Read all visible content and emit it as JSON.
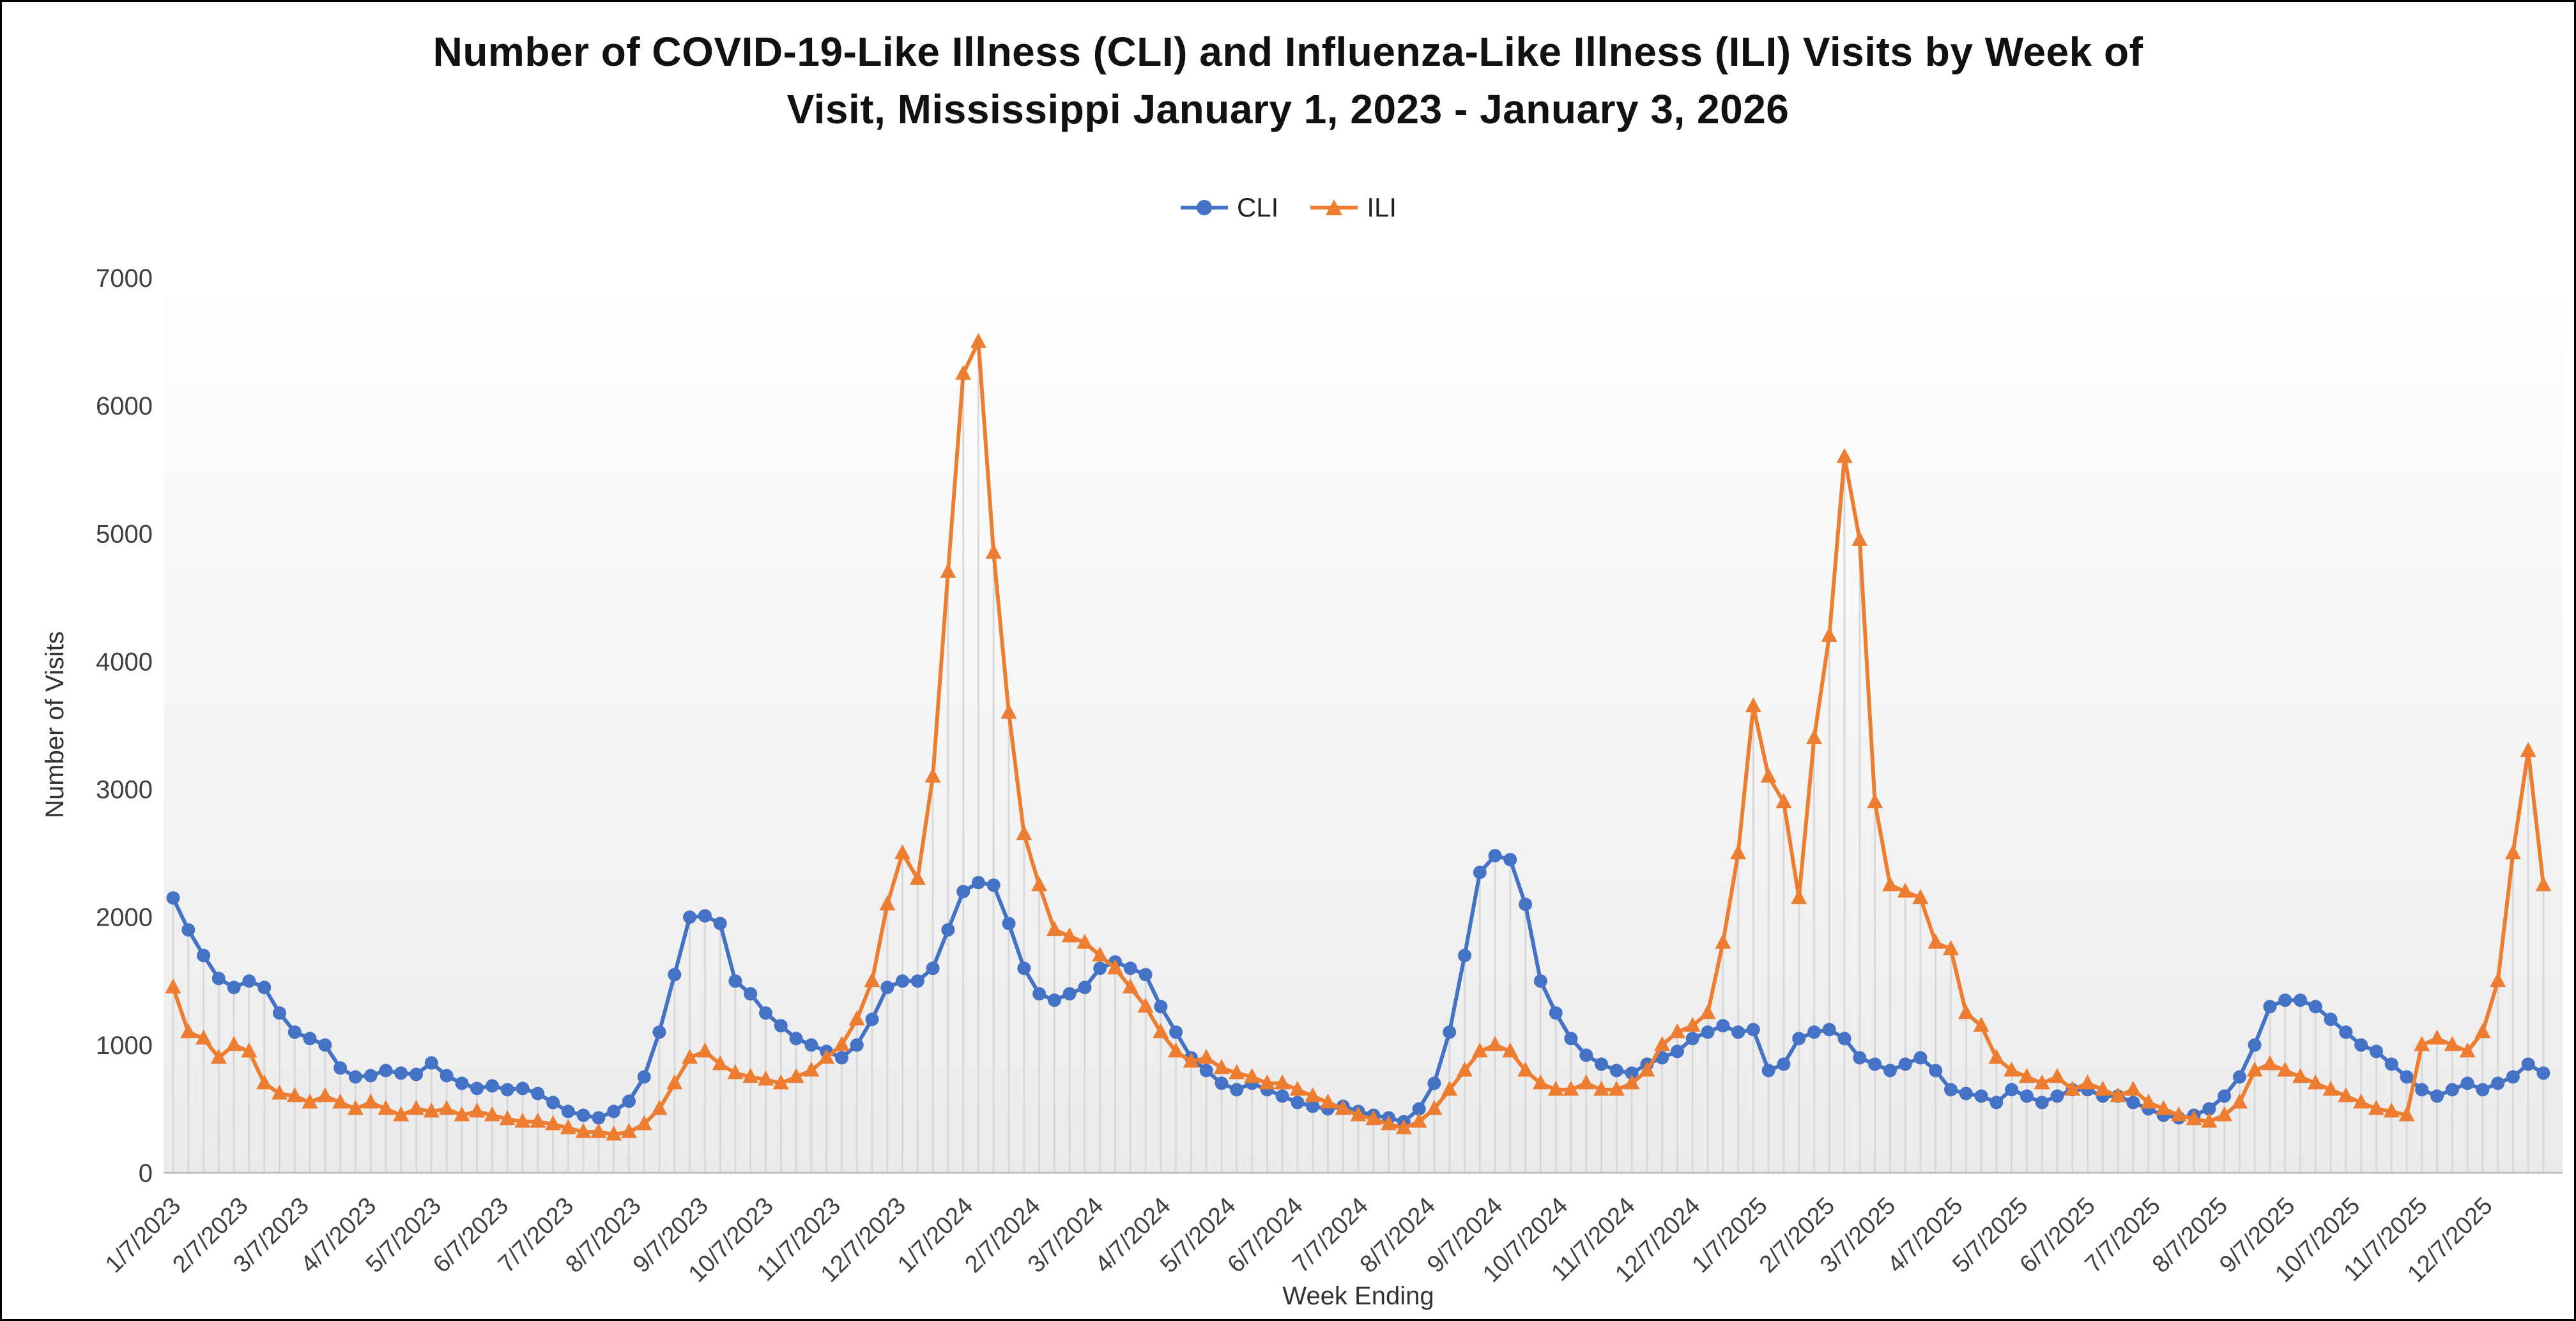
{
  "chart_data": {
    "type": "line",
    "title_lines": [
      "Number of COVID-19-Like Illness (CLI) and Influenza-Like Illness (ILI) Visits by Week of",
      "Visit, Mississippi January 1, 2023 - January 3, 2026"
    ],
    "xlabel": "Week Ending",
    "ylabel": "Number of Visits",
    "ylim": [
      0,
      7000
    ],
    "y_ticks": [
      0,
      1000,
      2000,
      3000,
      4000,
      5000,
      6000,
      7000
    ],
    "grid": "none",
    "legend_position": "top-center",
    "x_start_date": "1/7/2023",
    "x_end_date": "1/3/2026",
    "x_week_interval_days": 7,
    "x_tick_labels": [
      "1/7/2023",
      "2/7/2023",
      "3/7/2023",
      "4/7/2023",
      "5/7/2023",
      "6/7/2023",
      "7/7/2023",
      "8/7/2023",
      "9/7/2023",
      "10/7/2023",
      "11/7/2023",
      "12/7/2023",
      "1/7/2024",
      "2/7/2024",
      "3/7/2024",
      "4/7/2024",
      "5/7/2024",
      "6/7/2024",
      "7/7/2024",
      "8/7/2024",
      "9/7/2024",
      "10/7/2024",
      "11/7/2024",
      "12/7/2024",
      "1/7/2025",
      "2/7/2025",
      "3/7/2025",
      "4/7/2025",
      "5/7/2025",
      "6/7/2025",
      "7/7/2025",
      "8/7/2025",
      "9/7/2025",
      "10/7/2025",
      "11/7/2025",
      "12/7/2025"
    ],
    "series": [
      {
        "name": "CLI",
        "marker": "circle",
        "color": "#4472C4",
        "values": [
          2150,
          1900,
          1700,
          1520,
          1450,
          1500,
          1450,
          1250,
          1100,
          1050,
          1000,
          820,
          750,
          760,
          800,
          780,
          770,
          860,
          760,
          700,
          660,
          680,
          650,
          660,
          620,
          550,
          480,
          450,
          430,
          480,
          560,
          750,
          1100,
          1550,
          2000,
          2010,
          1950,
          1500,
          1400,
          1250,
          1150,
          1050,
          1000,
          950,
          900,
          1000,
          1200,
          1450,
          1500,
          1500,
          1600,
          1900,
          2200,
          2270,
          2250,
          1950,
          1600,
          1400,
          1350,
          1400,
          1450,
          1600,
          1650,
          1600,
          1550,
          1300,
          1100,
          900,
          800,
          700,
          650,
          700,
          650,
          600,
          550,
          520,
          500,
          520,
          480,
          450,
          430,
          400,
          500,
          700,
          1100,
          1700,
          2350,
          2480,
          2450,
          2100,
          1500,
          1250,
          1050,
          920,
          850,
          800,
          780,
          850,
          900,
          950,
          1050,
          1100,
          1150,
          1100,
          1120,
          800,
          850,
          1050,
          1100,
          1120,
          1050,
          900,
          850,
          800,
          850,
          900,
          800,
          650,
          620,
          600,
          550,
          650,
          600,
          550,
          600,
          650,
          650,
          600,
          600,
          550,
          500,
          450,
          430,
          450,
          500,
          600,
          750,
          1000,
          1300,
          1350,
          1350,
          1300,
          1200,
          1100,
          1000,
          950,
          850,
          750,
          650,
          600,
          650,
          700,
          650,
          700,
          750,
          850,
          780
        ]
      },
      {
        "name": "ILI",
        "marker": "triangle",
        "color": "#ED7D31",
        "values": [
          1450,
          1100,
          1050,
          900,
          1000,
          950,
          700,
          620,
          600,
          550,
          600,
          550,
          500,
          550,
          500,
          450,
          500,
          480,
          500,
          450,
          480,
          450,
          420,
          400,
          400,
          380,
          350,
          320,
          320,
          300,
          320,
          380,
          500,
          700,
          900,
          950,
          850,
          780,
          750,
          730,
          700,
          750,
          800,
          900,
          1000,
          1200,
          1500,
          2100,
          2500,
          2300,
          3100,
          4700,
          6250,
          6500,
          4850,
          3600,
          2650,
          2250,
          1900,
          1850,
          1800,
          1700,
          1600,
          1450,
          1300,
          1100,
          950,
          870,
          900,
          820,
          780,
          750,
          700,
          700,
          650,
          600,
          550,
          500,
          450,
          420,
          380,
          350,
          400,
          500,
          650,
          800,
          950,
          1000,
          950,
          800,
          700,
          650,
          650,
          700,
          650,
          650,
          700,
          800,
          1000,
          1100,
          1150,
          1250,
          1800,
          2500,
          3650,
          3100,
          2900,
          2150,
          3400,
          4200,
          5600,
          4950,
          2900,
          2250,
          2200,
          2150,
          1800,
          1750,
          1250,
          1150,
          900,
          800,
          750,
          700,
          750,
          650,
          700,
          650,
          600,
          650,
          550,
          500,
          450,
          420,
          400,
          450,
          550,
          800,
          850,
          800,
          750,
          700,
          650,
          600,
          550,
          500,
          480,
          450,
          1000,
          1050,
          1000,
          950,
          1100,
          1500,
          2500,
          3300,
          2250
        ]
      }
    ],
    "style": {
      "dropline_color": "#D9D9D9",
      "axis_color": "#BFBFBF",
      "text_color": "#404040",
      "title_color": "#111111",
      "plot_bg_top": "#FFFFFF",
      "plot_bg_bottom": "#EBEBEB",
      "frame_border": "#000000"
    }
  }
}
